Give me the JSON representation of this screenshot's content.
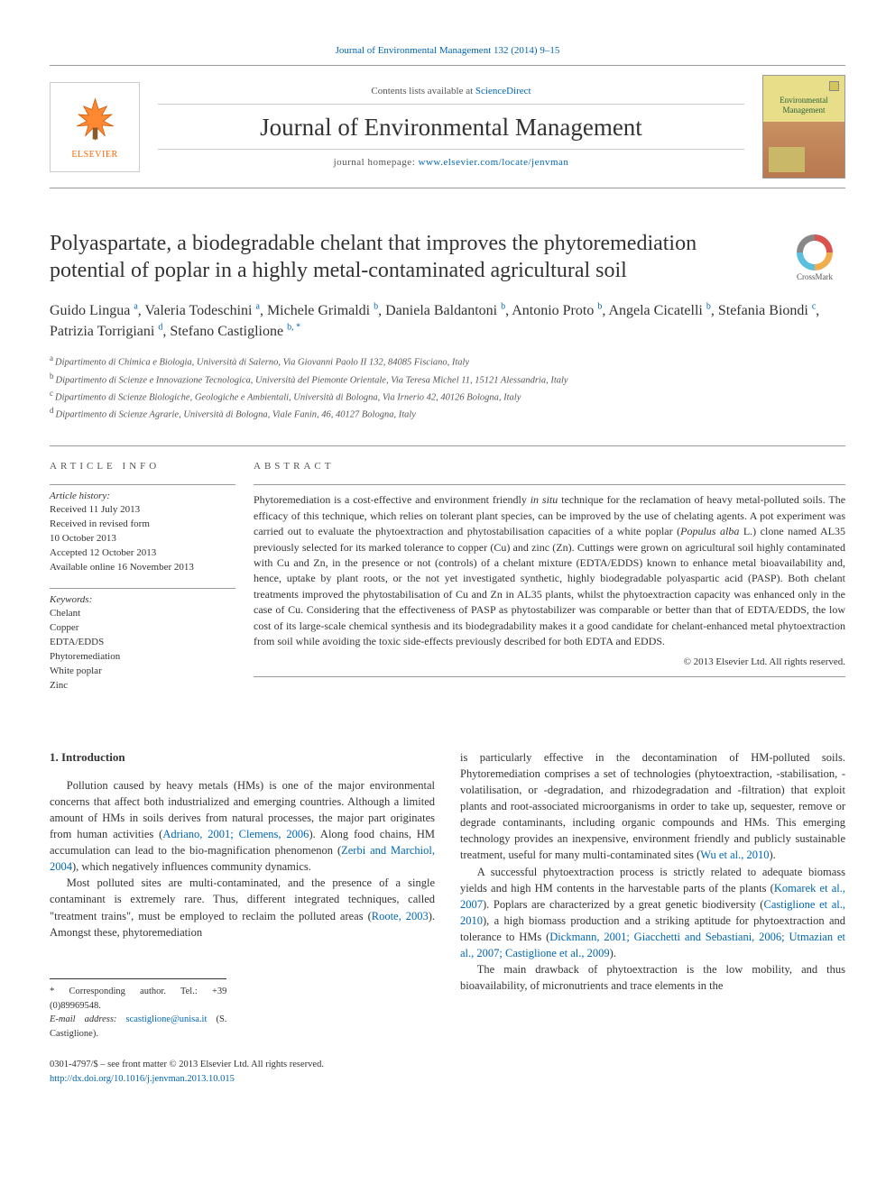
{
  "top_citation": "Journal of Environmental Management 132 (2014) 9–15",
  "header": {
    "contents_prefix": "Contents lists available at ",
    "contents_link": "ScienceDirect",
    "journal_name": "Journal of Environmental Management",
    "homepage_prefix": "journal homepage: ",
    "homepage_url": "www.elsevier.com/locate/jenvman",
    "elsevier_label": "ELSEVIER",
    "cover_title_line1": "Environmental",
    "cover_title_line2": "Management"
  },
  "crossmark_label": "CrossMark",
  "title": "Polyaspartate, a biodegradable chelant that improves the phytoremediation potential of poplar in a highly metal-contaminated agricultural soil",
  "authors_html": "Guido Lingua <sup>a</sup>, Valeria Todeschini <sup>a</sup>, Michele Grimaldi <sup>b</sup>, Daniela Baldantoni <sup>b</sup>, Antonio Proto <sup>b</sup>, Angela Cicatelli <sup>b</sup>, Stefania Biondi <sup>c</sup>, Patrizia Torrigiani <sup>d</sup>, Stefano Castiglione <sup>b, *</sup>",
  "affiliations": [
    {
      "sup": "a",
      "text": "Dipartimento di Chimica e Biologia, Università di Salerno, Via Giovanni Paolo II 132, 84085 Fisciano, Italy"
    },
    {
      "sup": "b",
      "text": "Dipartimento di Scienze e Innovazione Tecnologica, Università del Piemonte Orientale, Via Teresa Michel 11, 15121 Alessandria, Italy"
    },
    {
      "sup": "c",
      "text": "Dipartimento di Scienze Biologiche, Geologiche e Ambientali, Università di Bologna, Via Irnerio 42, 40126 Bologna, Italy"
    },
    {
      "sup": "d",
      "text": "Dipartimento di Scienze Agrarie, Università di Bologna, Viale Fanin, 46, 40127 Bologna, Italy"
    }
  ],
  "info": {
    "heading": "ARTICLE INFO",
    "history_title": "Article history:",
    "history_lines": [
      "Received 11 July 2013",
      "Received in revised form",
      "10 October 2013",
      "Accepted 12 October 2013",
      "Available online 16 November 2013"
    ],
    "keywords_title": "Keywords:",
    "keywords": [
      "Chelant",
      "Copper",
      "EDTA/EDDS",
      "Phytoremediation",
      "White poplar",
      "Zinc"
    ]
  },
  "abstract": {
    "heading": "ABSTRACT",
    "text": "Phytoremediation is a cost-effective and environment friendly in situ technique for the reclamation of heavy metal-polluted soils. The efficacy of this technique, which relies on tolerant plant species, can be improved by the use of chelating agents. A pot experiment was carried out to evaluate the phytoextraction and phytostabilisation capacities of a white poplar (Populus alba L.) clone named AL35 previously selected for its marked tolerance to copper (Cu) and zinc (Zn). Cuttings were grown on agricultural soil highly contaminated with Cu and Zn, in the presence or not (controls) of a chelant mixture (EDTA/EDDS) known to enhance metal bioavailability and, hence, uptake by plant roots, or the not yet investigated synthetic, highly biodegradable polyaspartic acid (PASP). Both chelant treatments improved the phytostabilisation of Cu and Zn in AL35 plants, whilst the phytoextraction capacity was enhanced only in the case of Cu. Considering that the effectiveness of PASP as phytostabilizer was comparable or better than that of EDTA/EDDS, the low cost of its large-scale chemical synthesis and its biodegradability makes it a good candidate for chelant-enhanced metal phytoextraction from soil while avoiding the toxic side-effects previously described for both EDTA and EDDS.",
    "copyright": "© 2013 Elsevier Ltd. All rights reserved."
  },
  "intro": {
    "heading": "1.  Introduction",
    "p1_pre": "Pollution caused by heavy metals (HMs) is one of the major environmental concerns that affect both industrialized and emerging countries. Although a limited amount of HMs in soils derives from natural processes, the major part originates from human activities (",
    "p1_cite1": "Adriano, 2001; Clemens, 2006",
    "p1_mid": "). Along food chains, HM accumulation can lead to the bio-magnification phenomenon (",
    "p1_cite2": "Zerbi and Marchiol, 2004",
    "p1_post": "), which negatively influences community dynamics.",
    "p2_pre": "Most polluted sites are multi-contaminated, and the presence of a single contaminant is extremely rare. Thus, different integrated techniques, called \"treatment trains\", must be employed to reclaim the polluted areas (",
    "p2_cite1": "Roote, 2003",
    "p2_post": "). Amongst these, phytoremediation",
    "p3_pre": "is particularly effective in the decontamination of HM-polluted soils. Phytoremediation comprises a set of technologies (phytoextraction, -stabilisation, -volatilisation, or -degradation, and rhizodegradation and -filtration) that exploit plants and root-associated microorganisms in order to take up, sequester, remove or degrade contaminants, including organic compounds and HMs. This emerging technology provides an inexpensive, environment friendly and publicly sustainable treatment, useful for many multi-contaminated sites (",
    "p3_cite1": "Wu et al., 2010",
    "p3_post": ").",
    "p4_pre": "A successful phytoextraction process is strictly related to adequate biomass yields and high HM contents in the harvestable parts of the plants (",
    "p4_cite1": "Komarek et al., 2007",
    "p4_mid": "). Poplars are characterized by a great genetic biodiversity (",
    "p4_cite2": "Castiglione et al., 2010",
    "p4_mid2": "), a high biomass production and a striking aptitude for phytoextraction and tolerance to HMs (",
    "p4_cite3": "Dickmann, 2001; Giacchetti and Sebastiani, 2006; Utmazian et al., 2007; Castiglione et al., 2009",
    "p4_post": ").",
    "p5": "The main drawback of phytoextraction is the low mobility, and thus bioavailability, of micronutrients and trace elements in the"
  },
  "footnotes": {
    "corr": "* Corresponding author. Tel.: +39 (0)89969548.",
    "email_label": "E-mail address: ",
    "email": "scastiglione@unisa.it",
    "email_name": " (S. Castiglione)."
  },
  "bottom": {
    "issn": "0301-4797/$ – see front matter © 2013 Elsevier Ltd. All rights reserved.",
    "doi": "http://dx.doi.org/10.1016/j.jenvman.2013.10.015"
  },
  "colors": {
    "link": "#0066b3",
    "elsevier_orange": "#ff6600",
    "rule": "#999999"
  }
}
